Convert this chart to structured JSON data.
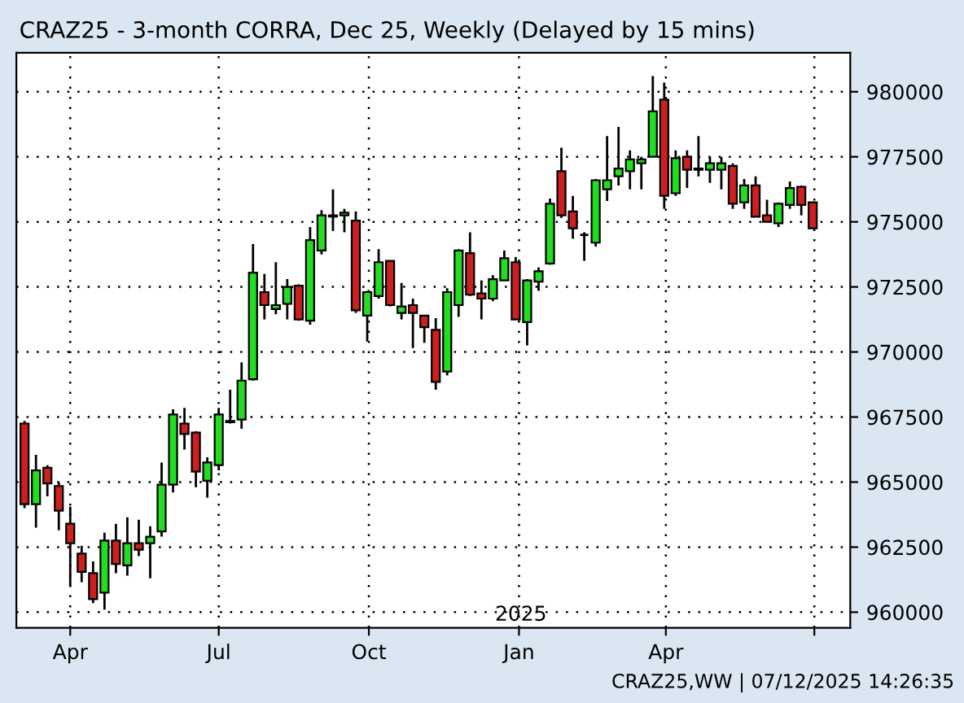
{
  "chart_data": {
    "type": "candlestick",
    "title": "CRAZ25 - 3-month CORRA, Dec 25, Weekly (Delayed by 15 mins)",
    "x": [
      "2024-03-04",
      "2024-03-11",
      "2024-03-18",
      "2024-03-25",
      "2024-04-01",
      "2024-04-08",
      "2024-04-15",
      "2024-04-22",
      "2024-04-29",
      "2024-05-06",
      "2024-05-13",
      "2024-05-20",
      "2024-05-27",
      "2024-06-03",
      "2024-06-10",
      "2024-06-17",
      "2024-06-24",
      "2024-07-01",
      "2024-07-08",
      "2024-07-15",
      "2024-07-22",
      "2024-07-29",
      "2024-08-05",
      "2024-08-12",
      "2024-08-19",
      "2024-08-26",
      "2024-09-02",
      "2024-09-09",
      "2024-09-16",
      "2024-09-23",
      "2024-09-30",
      "2024-10-07",
      "2024-10-14",
      "2024-10-21",
      "2024-10-28",
      "2024-11-04",
      "2024-11-11",
      "2024-11-18",
      "2024-11-25",
      "2024-12-02",
      "2024-12-09",
      "2024-12-16",
      "2024-12-23",
      "2024-12-30",
      "2025-01-06",
      "2025-01-13",
      "2025-01-20",
      "2025-01-27",
      "2025-02-03",
      "2025-02-10",
      "2025-02-17",
      "2025-02-24",
      "2025-03-03",
      "2025-03-10",
      "2025-03-17",
      "2025-03-24",
      "2025-03-31",
      "2025-04-07",
      "2025-04-14",
      "2025-04-21",
      "2025-04-28",
      "2025-05-05",
      "2025-05-12",
      "2025-05-19",
      "2025-05-26",
      "2025-06-02",
      "2025-06-09",
      "2025-06-16",
      "2025-06-23",
      "2025-06-30"
    ],
    "ohlc": [
      [
        967250,
        967350,
        964000,
        964150
      ],
      [
        964150,
        966050,
        963250,
        965450
      ],
      [
        965550,
        965650,
        964450,
        964950
      ],
      [
        964850,
        965000,
        963150,
        963900
      ],
      [
        963400,
        964050,
        961000,
        962650
      ],
      [
        962250,
        962550,
        961150,
        961550
      ],
      [
        961500,
        961950,
        960350,
        960500
      ],
      [
        960750,
        963050,
        960100,
        962750
      ],
      [
        962750,
        963400,
        961500,
        961850
      ],
      [
        961800,
        963650,
        961400,
        962650
      ],
      [
        962650,
        963550,
        962150,
        962400
      ],
      [
        962650,
        963300,
        961300,
        962900
      ],
      [
        963100,
        965750,
        962900,
        964900
      ],
      [
        964900,
        967800,
        964600,
        967600
      ],
      [
        967250,
        967850,
        966250,
        966850
      ],
      [
        966900,
        966950,
        964800,
        965400
      ],
      [
        965050,
        965950,
        964400,
        965750
      ],
      [
        965650,
        967850,
        965450,
        967600
      ],
      [
        967300,
        968550,
        967250,
        967350
      ],
      [
        967400,
        969600,
        967050,
        968900
      ],
      [
        968950,
        974150,
        968900,
        973050
      ],
      [
        972300,
        973000,
        971250,
        971800
      ],
      [
        971650,
        973450,
        971450,
        971800
      ],
      [
        971850,
        972800,
        971250,
        972500
      ],
      [
        972550,
        972600,
        971200,
        971250
      ],
      [
        971200,
        974800,
        971050,
        974300
      ],
      [
        973900,
        975450,
        973750,
        975250
      ],
      [
        975250,
        976250,
        974650,
        975200
      ],
      [
        975250,
        975500,
        974600,
        975350
      ],
      [
        975050,
        975400,
        971500,
        971600
      ],
      [
        971400,
        972350,
        970400,
        972300
      ],
      [
        972150,
        973950,
        972050,
        973450
      ],
      [
        973500,
        973500,
        971750,
        971800
      ],
      [
        971500,
        972650,
        971250,
        971750
      ],
      [
        971800,
        972050,
        970150,
        971500
      ],
      [
        971400,
        971400,
        970350,
        970950
      ],
      [
        970850,
        971300,
        968550,
        968850
      ],
      [
        969250,
        972450,
        969100,
        972300
      ],
      [
        971800,
        973950,
        971350,
        973900
      ],
      [
        973800,
        974600,
        972150,
        972200
      ],
      [
        972250,
        972750,
        971250,
        972050
      ],
      [
        972050,
        972950,
        971950,
        972800
      ],
      [
        972750,
        973900,
        972750,
        973600
      ],
      [
        973450,
        973650,
        971250,
        971250
      ],
      [
        971150,
        972800,
        970250,
        972750
      ],
      [
        972700,
        973250,
        972350,
        973100
      ],
      [
        973400,
        975900,
        973350,
        975700
      ],
      [
        976950,
        977850,
        975150,
        975250
      ],
      [
        975400,
        976000,
        974350,
        974750
      ],
      [
        974500,
        974600,
        973500,
        974500
      ],
      [
        974200,
        976650,
        974050,
        976600
      ],
      [
        976250,
        978300,
        975800,
        976600
      ],
      [
        976750,
        978650,
        976400,
        977050
      ],
      [
        976950,
        977750,
        976250,
        977400
      ],
      [
        977250,
        977500,
        976250,
        977400
      ],
      [
        977500,
        980600,
        977500,
        979250
      ],
      [
        979700,
        980350,
        975500,
        976000
      ],
      [
        976100,
        977750,
        976000,
        977450
      ],
      [
        977500,
        977750,
        976300,
        977000
      ],
      [
        977000,
        978300,
        976750,
        977050
      ],
      [
        977000,
        977500,
        976500,
        977250
      ],
      [
        977000,
        977500,
        976250,
        977250
      ],
      [
        977150,
        977250,
        975500,
        975700
      ],
      [
        975750,
        976650,
        975500,
        976400
      ],
      [
        976400,
        976750,
        975200,
        975200
      ],
      [
        975250,
        975850,
        975000,
        975000
      ],
      [
        974950,
        975750,
        974800,
        975700
      ],
      [
        975650,
        976550,
        975500,
        976300
      ],
      [
        976350,
        976400,
        975250,
        975650
      ],
      [
        975750,
        975750,
        974750,
        974750
      ]
    ],
    "colors": [
      "#cc1f1f",
      "#22dd22",
      "#cc1f1f",
      "#cc1f1f",
      "#cc1f1f",
      "#cc1f1f",
      "#cc1f1f",
      "#22dd22",
      "#cc1f1f",
      "#22dd22",
      "#cc1f1f",
      "#22dd22",
      "#22dd22",
      "#22dd22",
      "#cc1f1f",
      "#cc1f1f",
      "#22dd22",
      "#22dd22",
      "#22dd22",
      "#22dd22",
      "#22dd22",
      "#cc1f1f",
      "#22dd22",
      "#22dd22",
      "#cc1f1f",
      "#22dd22",
      "#22dd22",
      "#cc1f1f",
      "#22dd22",
      "#cc1f1f",
      "#22dd22",
      "#22dd22",
      "#cc1f1f",
      "#22dd22",
      "#cc1f1f",
      "#cc1f1f",
      "#cc1f1f",
      "#22dd22",
      "#22dd22",
      "#cc1f1f",
      "#cc1f1f",
      "#22dd22",
      "#22dd22",
      "#cc1f1f",
      "#22dd22",
      "#22dd22",
      "#22dd22",
      "#cc1f1f",
      "#cc1f1f",
      "#000000",
      "#22dd22",
      "#22dd22",
      "#22dd22",
      "#22dd22",
      "#22dd22",
      "#22dd22",
      "#cc1f1f",
      "#22dd22",
      "#cc1f1f",
      "#22dd22",
      "#22dd22",
      "#22dd22",
      "#cc1f1f",
      "#22dd22",
      "#cc1f1f",
      "#cc1f1f",
      "#22dd22",
      "#22dd22",
      "#cc1f1f",
      "#cc1f1f"
    ],
    "xlim": [
      "2024-02-28",
      "2025-07-23"
    ],
    "xticks": [
      {
        "value": "2024-04-01",
        "label": "Apr"
      },
      {
        "value": "2024-07-01",
        "label": "Jul"
      },
      {
        "value": "2024-10-01",
        "label": "Oct"
      },
      {
        "value": "2025-01-01",
        "label": "Jan"
      },
      {
        "value": "2025-04-01",
        "label": "Apr"
      },
      {
        "value": "2025-07-01",
        "label": null
      }
    ],
    "ylim": [
      959400,
      981500
    ],
    "yticks": [
      960000,
      962500,
      965000,
      967500,
      970000,
      972500,
      975000,
      977500,
      980000
    ],
    "grid": true,
    "annotations": [
      "2025",
      "CRAZ25,WW | 07/12/2025 14:26:35"
    ]
  }
}
